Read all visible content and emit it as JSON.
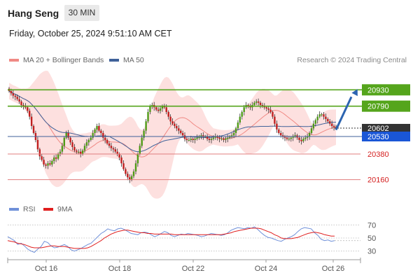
{
  "header": {
    "symbol": "Hang Seng",
    "timeframe": "30 MIN",
    "datetime": "Friday, October 25, 2024 9:51:10 AM CET"
  },
  "legend": {
    "ma20_label": "MA 20 + Bollinger Bands",
    "ma50_label": "MA 50",
    "credit": "Research © 2024 Trading Central"
  },
  "rsi_legend": {
    "rsi_label": "RSI",
    "ma_label": "9MA"
  },
  "colors": {
    "ma20": "#f08a85",
    "ma50": "#3f6199",
    "band_fill": "#fcd6d4",
    "resistance": "#55a51c",
    "support": "#e07d7d",
    "pivot": "#3f6199",
    "current_price": "#333333",
    "arrow": "#2c64b0",
    "rsi": "#6f90d9",
    "rsi_ma": "#e01f1f",
    "candle_up": "#4f9a16",
    "candle_down": "#c02020"
  },
  "chart_data": [
    {
      "type": "candlestick",
      "title": "Hang Seng",
      "timeframe": "30 MIN",
      "x_ticks": [
        "Oct 16",
        "Oct 18",
        "Oct 22",
        "Oct 24",
        "Oct 26"
      ],
      "ylim": [
        20050,
        21100
      ],
      "ohlc_close": [
        20920,
        20900,
        20880,
        20870,
        20850,
        20830,
        20800,
        20790,
        20780,
        20750,
        20700,
        20620,
        20560,
        20500,
        20420,
        20360,
        20330,
        20290,
        20280,
        20300,
        20290,
        20320,
        20350,
        20340,
        20380,
        20400,
        20450,
        20520,
        20560,
        20520,
        20480,
        20440,
        20410,
        20400,
        20400,
        20380,
        20410,
        20450,
        20480,
        20500,
        20520,
        20560,
        20590,
        20620,
        20580,
        20560,
        20520,
        20500,
        20470,
        20450,
        20430,
        20420,
        20400,
        20380,
        20350,
        20300,
        20250,
        20210,
        20180,
        20160,
        20190,
        20230,
        20300,
        20380,
        20450,
        20520,
        20580,
        20660,
        20740,
        20790,
        20800,
        20780,
        20760,
        20750,
        20770,
        20790,
        20780,
        20740,
        20700,
        20660,
        20640,
        20620,
        20600,
        20580,
        20560,
        20540,
        20510,
        20500,
        20500,
        20510,
        20500,
        20510,
        20520,
        20530,
        20540,
        20530,
        20530,
        20510,
        20500,
        20510,
        20520,
        20530,
        20520,
        20510,
        20510,
        20500,
        20510,
        20520,
        20530,
        20540,
        20560,
        20600,
        20650,
        20700,
        20740,
        20780,
        20800,
        20790,
        20780,
        20800,
        20820,
        20830,
        20820,
        20800,
        20790,
        20780,
        20770,
        20760,
        20740,
        20700,
        20640,
        20590,
        20560,
        20540,
        20530,
        20520,
        20510,
        20510,
        20520,
        20530,
        20540,
        20520,
        20500,
        20490,
        20510,
        20520,
        20530,
        20560,
        20600,
        20640,
        20670,
        20700,
        20720,
        20720,
        20700,
        20680,
        20660,
        20640,
        20620,
        20610,
        20605
      ],
      "levels": [
        {
          "name": "resistance-2",
          "value": 20930,
          "kind": "resistance"
        },
        {
          "name": "resistance-1",
          "value": 20790,
          "kind": "resistance"
        },
        {
          "name": "last-price",
          "value": 20602,
          "kind": "price"
        },
        {
          "name": "pivot",
          "value": 20530,
          "kind": "pivot"
        },
        {
          "name": "support-1",
          "value": 20380,
          "kind": "support"
        },
        {
          "name": "support-2",
          "value": 20160,
          "kind": "support"
        }
      ],
      "labels": {
        "resistance_2": "20930",
        "resistance_1": "20790",
        "last_price": "20602",
        "pivot": "20530",
        "support_1": "20380",
        "support_2": "20160"
      },
      "bias_arrow": "up"
    },
    {
      "type": "line",
      "title": "RSI",
      "ylim": [
        20,
        80
      ],
      "y_ticks": [
        70,
        50,
        30
      ],
      "y_tick_labels": [
        "70",
        "50",
        "30"
      ],
      "rsi": [
        52,
        49,
        46,
        40,
        42,
        38,
        33,
        30,
        28,
        33,
        37,
        45,
        43,
        38,
        35,
        36,
        38,
        40,
        37,
        32,
        30,
        32,
        34,
        37,
        40,
        42,
        47,
        52,
        57,
        60,
        64,
        62,
        61,
        64,
        65,
        63,
        60,
        57,
        56,
        55,
        58,
        59,
        58,
        55,
        52,
        54,
        57,
        60,
        58,
        54,
        52,
        54,
        56,
        55,
        57,
        56,
        55,
        54,
        52,
        53,
        55,
        57,
        56,
        55,
        54,
        55,
        58,
        62,
        64,
        66,
        65,
        64,
        66,
        65,
        67,
        63,
        58,
        54,
        51,
        50,
        48,
        46,
        45,
        48,
        50,
        52,
        55,
        60,
        64,
        66,
        65,
        64,
        58,
        54,
        48,
        46,
        47,
        45,
        46
      ],
      "rsi_ma": [
        46,
        45,
        44,
        42,
        41,
        40,
        38,
        36,
        35,
        35,
        35,
        36,
        37,
        38,
        38,
        37,
        37,
        37,
        36,
        35,
        34,
        34,
        34,
        34,
        35,
        37,
        40,
        43,
        46,
        50,
        53,
        56,
        58,
        60,
        61,
        62,
        62,
        61,
        60,
        59,
        58,
        58,
        57,
        57,
        56,
        56,
        56,
        56,
        56,
        56,
        55,
        55,
        55,
        55,
        55,
        55,
        55,
        55,
        55,
        55,
        55,
        55,
        55,
        55,
        55,
        56,
        57,
        58,
        60,
        61,
        62,
        63,
        64,
        65,
        65,
        65,
        64,
        62,
        60,
        58,
        55,
        53,
        50,
        49,
        49,
        49,
        50,
        51,
        53,
        55,
        57,
        58,
        59,
        58,
        57,
        55,
        54,
        53,
        53
      ]
    }
  ]
}
